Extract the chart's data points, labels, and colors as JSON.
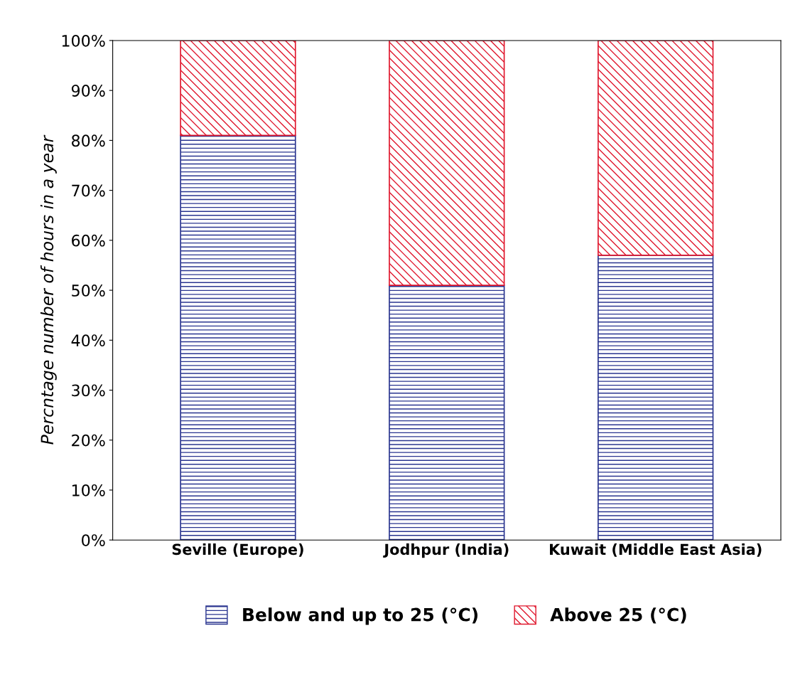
{
  "chart_data": {
    "type": "bar",
    "stacked": true,
    "ylabel": "Percntage number of hours in a year",
    "categories": [
      "Seville (Europe)",
      "Jodhpur (India)",
      "Kuwait (Middle East Asia)"
    ],
    "series": [
      {
        "name": "Below and up to 25 (°C)",
        "color": "#2a3590",
        "values": [
          81,
          51,
          57
        ]
      },
      {
        "name": "Above 25 (°C)",
        "color": "#e0182e",
        "values": [
          19,
          49,
          43
        ]
      }
    ],
    "ylim": [
      0,
      100
    ],
    "yticks": [
      {
        "value": 0,
        "label": "0%"
      },
      {
        "value": 10,
        "label": "10%"
      },
      {
        "value": 20,
        "label": "20%"
      },
      {
        "value": 30,
        "label": "30%"
      },
      {
        "value": 40,
        "label": "40%"
      },
      {
        "value": 50,
        "label": "50%"
      },
      {
        "value": 60,
        "label": "60%"
      },
      {
        "value": 70,
        "label": "70%"
      },
      {
        "value": 80,
        "label": "80%"
      },
      {
        "value": 90,
        "label": "90%"
      },
      {
        "value": 100,
        "label": "100%"
      }
    ],
    "grid": false,
    "legend": "bottom"
  }
}
